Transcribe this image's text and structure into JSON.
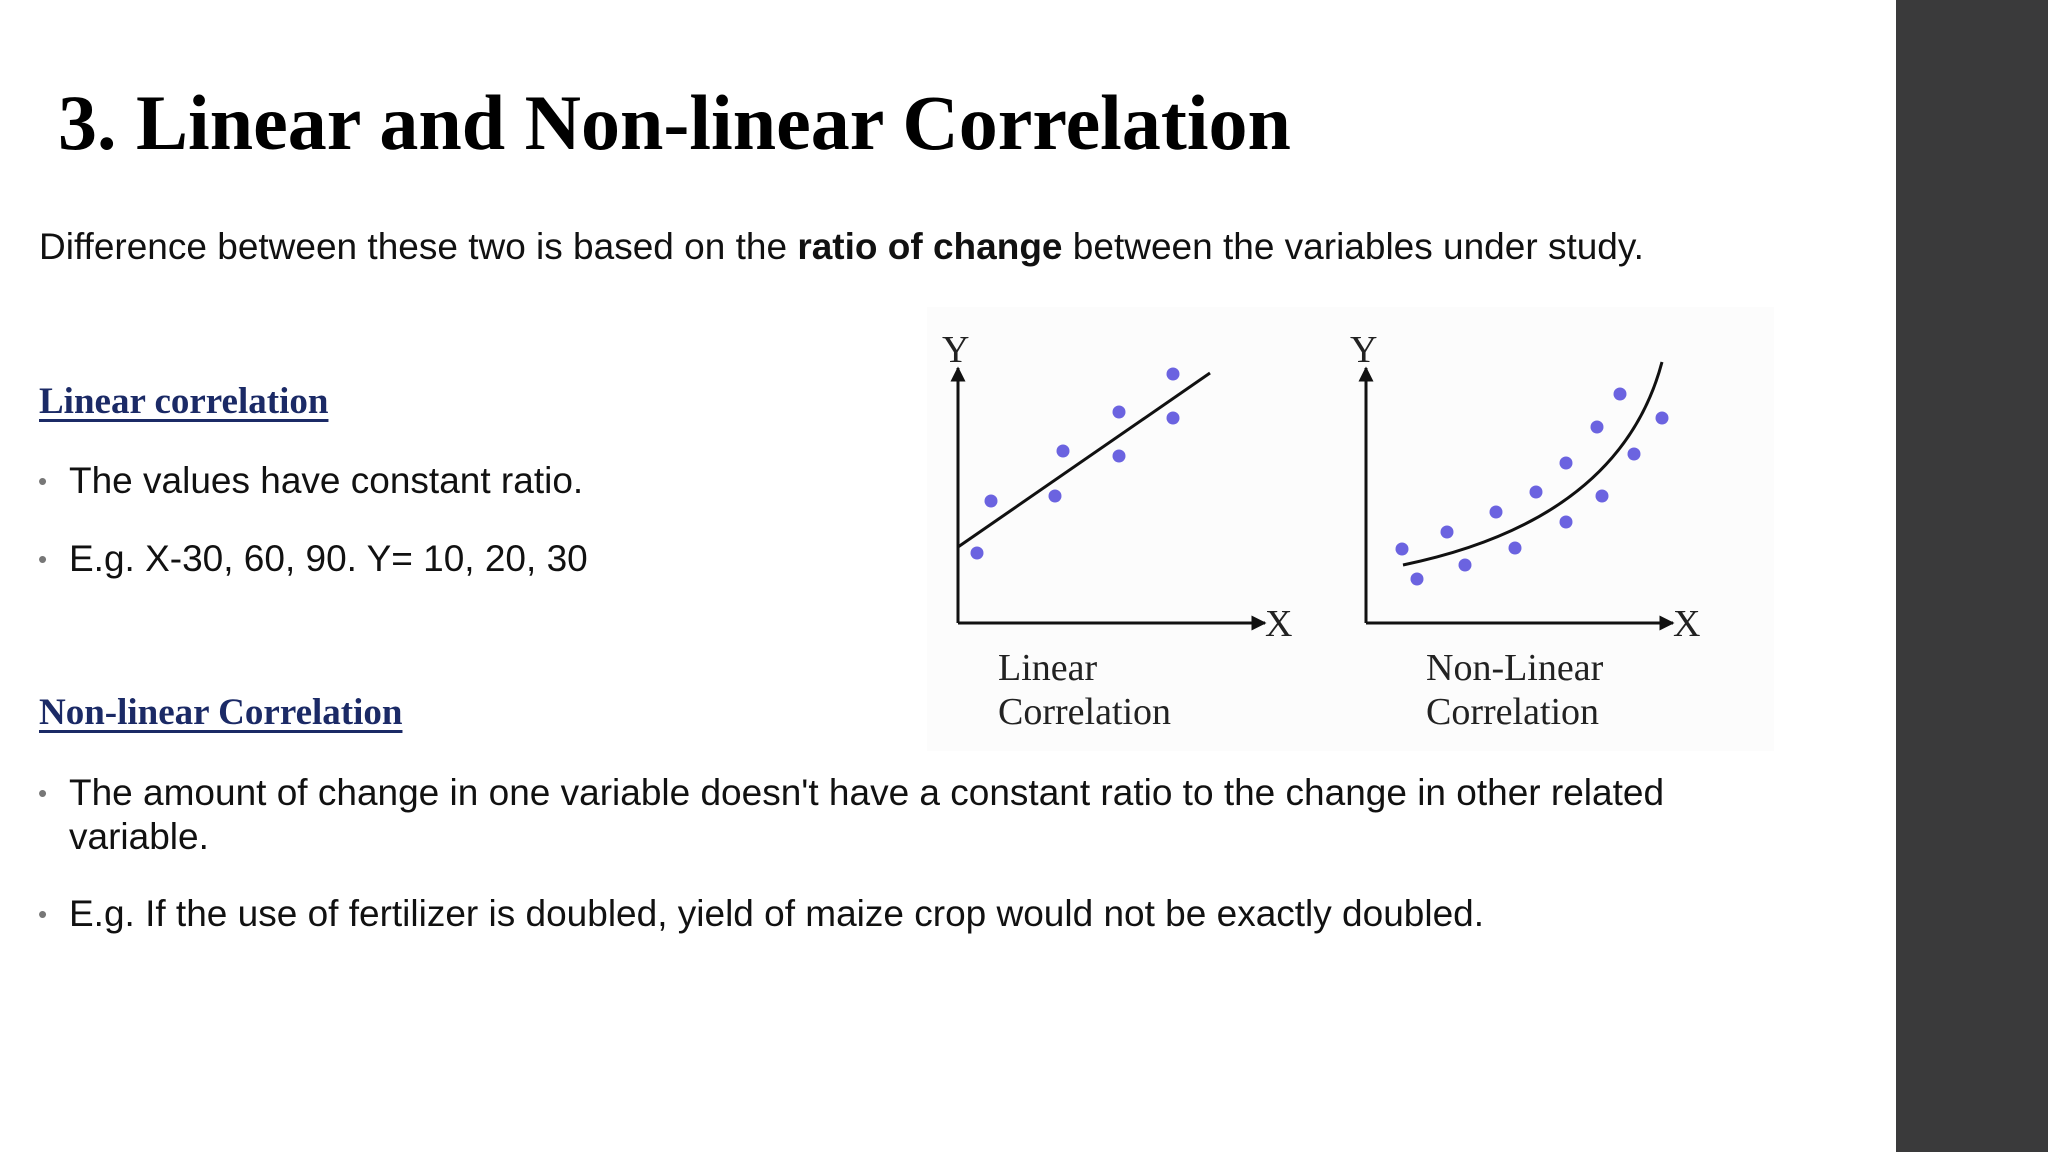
{
  "slide": {
    "title": "3. Linear and Non-linear Correlation",
    "intro_prefix": "Difference between these two is based on the ",
    "intro_bold": "ratio of change",
    "intro_suffix": " between the variables under study.",
    "sections": [
      {
        "heading": "Linear correlation",
        "bullets": [
          "The values have constant ratio.",
          "E.g. X-30, 60, 90. Y= 10, 20, 30"
        ]
      },
      {
        "heading": "Non-linear Correlation",
        "bullets": [
          "The amount of change in one variable doesn't have a constant ratio to the change in other related variable.",
          "E.g. If the use of fertilizer is doubled, yield of maize crop would not be exactly doubled."
        ]
      }
    ]
  },
  "diagram": {
    "panels": [
      {
        "y_label": "Y",
        "x_label": "X",
        "caption_line1": "Linear",
        "caption_line2": "Correlation"
      },
      {
        "y_label": "Y",
        "x_label": "X",
        "caption_line1": "Non-Linear",
        "caption_line2": "Correlation"
      }
    ],
    "point_color": "#6b63e0",
    "line_color": "#111111"
  },
  "theme": {
    "sidebar_color": "#3a3a3b",
    "heading_color": "#1b2a66"
  }
}
